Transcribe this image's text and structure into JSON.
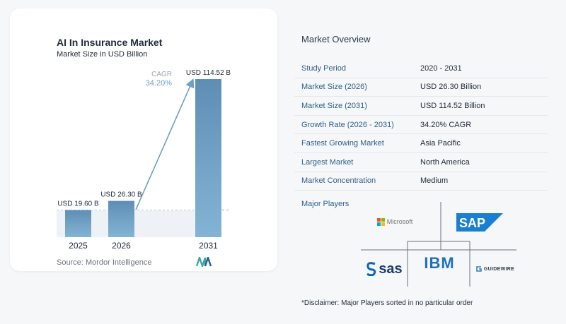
{
  "chart": {
    "title": "AI In Insurance Market",
    "subtitle": "Market Size in USD Billion",
    "source": "Source: Mordor Intelligence",
    "cagr_label": "CAGR",
    "cagr_value": "34.20%"
  },
  "chart_data": {
    "type": "bar",
    "categories": [
      "2025",
      "2026",
      "2031"
    ],
    "values": [
      19.6,
      26.3,
      114.52
    ],
    "value_labels": [
      "USD 19.60 B",
      "USD 26.30 B",
      "USD 114.52 B"
    ],
    "title": "AI In Insurance Market",
    "subtitle": "Market Size in USD Billion",
    "xlabel": "",
    "ylabel": "",
    "ylim": [
      0,
      114.52
    ],
    "grid": false,
    "annotations": [
      "CAGR",
      "34.20%"
    ]
  },
  "overview": {
    "title": "Market Overview",
    "rows": [
      {
        "label": "Study Period",
        "value": "2020 - 2031"
      },
      {
        "label": "Market Size (2026)",
        "value": "USD 26.30 Billion"
      },
      {
        "label": "Market Size (2031)",
        "value": "USD 114.52 Billion"
      },
      {
        "label": "Growth Rate (2026 - 2031)",
        "value": "34.20% CAGR"
      },
      {
        "label": "Fastest Growing Market",
        "value": "Asia Pacific"
      },
      {
        "label": "Largest Market",
        "value": "North America"
      },
      {
        "label": "Market Concentration",
        "value": "Medium"
      }
    ]
  },
  "players": {
    "title": "Major Players",
    "logos": [
      "Microsoft",
      "SAP",
      "sas",
      "IBM",
      "GUIDEWIRE"
    ],
    "disclaimer": "*Disclaimer: Major Players sorted in no particular order"
  },
  "colors": {
    "bar_small": "#6a9cc0",
    "bar_big": "#5f8fb4",
    "cagr": "#6f9fc3",
    "label": "#2f5f88"
  }
}
